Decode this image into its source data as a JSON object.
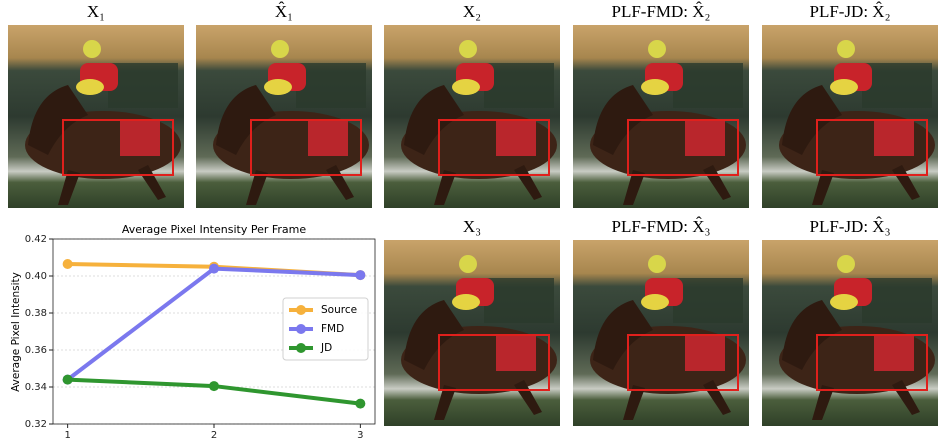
{
  "panels": [
    {
      "caption": "X₁"
    },
    {
      "caption": "X̂₁"
    },
    {
      "caption": "X₂"
    },
    {
      "caption": "PLF-FMD: X̂₂"
    },
    {
      "caption": "PLF-JD: X̂₂"
    },
    {
      "caption": "X₃"
    },
    {
      "caption": "PLF-FMD: X̂₃"
    },
    {
      "caption": "PLF-JD: X̂₃"
    }
  ],
  "chart_data": {
    "type": "line",
    "title": "Average Pixel Intensity Per Frame",
    "y_label": "Average Pixel Intensity",
    "x": [
      1,
      2,
      3
    ],
    "xlim": [
      0.9,
      3.1
    ],
    "xticks": [
      1,
      2,
      3
    ],
    "ylim": [
      0.32,
      0.42
    ],
    "yticks": [
      0.32,
      0.34,
      0.36,
      0.38,
      {
        "value": 0.4,
        "label": "0.40"
      },
      0.42
    ],
    "grid": true,
    "legend": "right",
    "series": [
      {
        "name": "Source",
        "color": "#f6b13c",
        "values": [
          0.4065,
          0.405,
          0.4005
        ]
      },
      {
        "name": "FMD",
        "color": "#7b78ee",
        "values": [
          0.344,
          0.404,
          0.4005
        ]
      },
      {
        "name": "JD",
        "color": "#2f962f",
        "values": [
          0.344,
          0.3405,
          0.331
        ]
      }
    ]
  }
}
